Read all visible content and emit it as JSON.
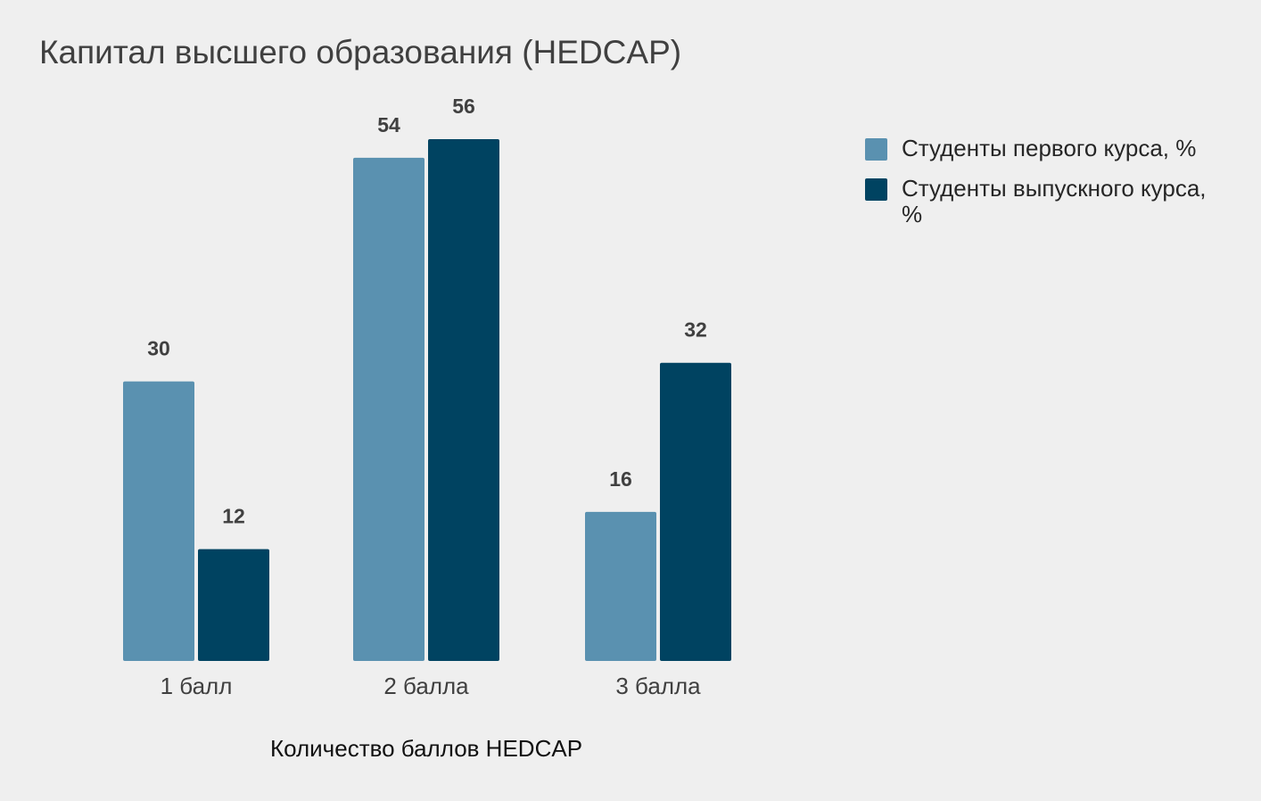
{
  "chart_data": {
    "type": "bar",
    "title": "Капитал высшего образования (HEDCAP)",
    "xlabel": "Количество баллов HEDCAP",
    "ylabel": "",
    "categories": [
      "1 балл",
      "2 балла",
      "3 балла"
    ],
    "series": [
      {
        "name": "Студенты первого курса, %",
        "values": [
          30,
          54,
          16
        ],
        "color": "#5a91b0"
      },
      {
        "name": "Студенты выпускного курса, %",
        "values": [
          12,
          56,
          32
        ],
        "color": "#004361"
      }
    ],
    "ylim": [
      0,
      56
    ],
    "grid": false,
    "legend_position": "right"
  }
}
